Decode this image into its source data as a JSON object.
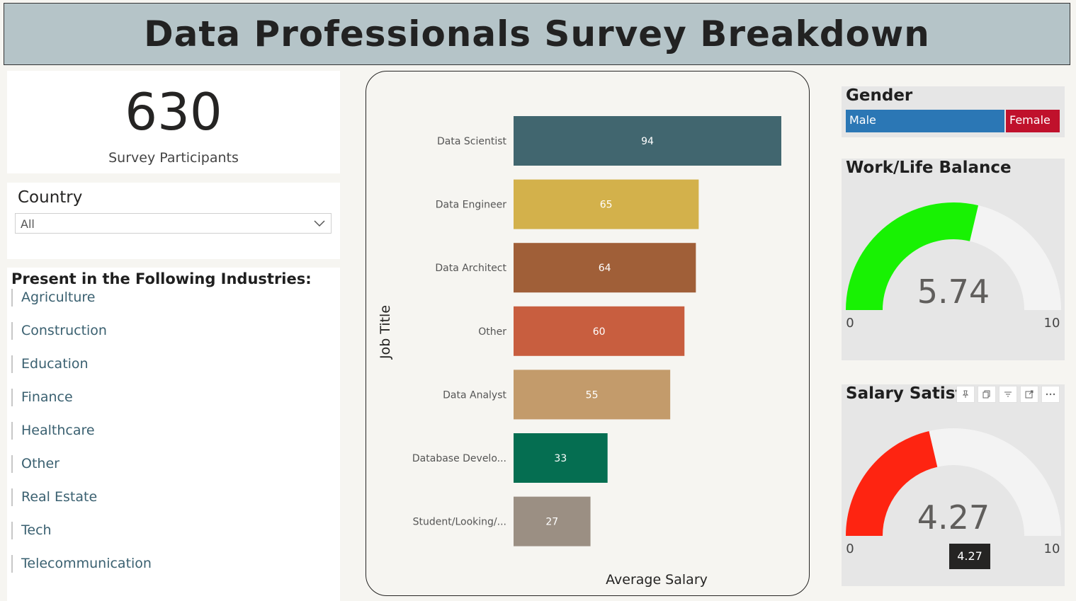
{
  "header": {
    "title": "Data Professionals Survey Breakdown"
  },
  "kpi": {
    "value": "630",
    "label": "Survey Participants"
  },
  "country_filter": {
    "title": "Country",
    "selected": "All"
  },
  "industries": {
    "title": "Present in the Following Industries:",
    "items": [
      "Agriculture",
      "Construction",
      "Education",
      "Finance",
      "Healthcare",
      "Other",
      "Real Estate",
      "Tech",
      "Telecommunication"
    ]
  },
  "gender": {
    "title": "Gender",
    "options": [
      {
        "label": "Male",
        "color": "#2b77b5"
      },
      {
        "label": "Female",
        "color": "#c0112c"
      }
    ]
  },
  "work_life": {
    "title": "Work/Life Balance",
    "value": 5.74,
    "value_label": "5.74",
    "min_label": "0",
    "max_label": "10",
    "fill": "#18f203"
  },
  "salary_satisfaction": {
    "title": "Salary Satisf",
    "value": 4.27,
    "value_label": "4.27",
    "min_label": "0",
    "max_label": "10",
    "fill": "#fe2411",
    "tooltip": "4.27"
  },
  "chart_data": {
    "type": "bar",
    "orientation": "horizontal",
    "xlabel": "Average Salary",
    "ylabel": "Job Title",
    "categories": [
      "Data Scientist",
      "Data Engineer",
      "Data Architect",
      "Other",
      "Data Analyst",
      "Database Develo...",
      "Student/Looking/..."
    ],
    "values": [
      94,
      65,
      64,
      60,
      55,
      33,
      27
    ],
    "colors": [
      "#41666f",
      "#d3b14b",
      "#a05f38",
      "#c85e3f",
      "#c39b6b",
      "#056e51",
      "#9b8f83"
    ],
    "xlim": [
      0,
      95
    ]
  }
}
